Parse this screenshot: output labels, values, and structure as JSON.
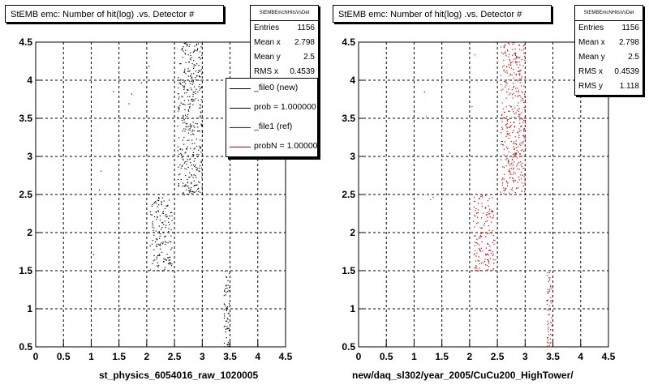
{
  "chart_data": [
    {
      "type": "scatter",
      "title": "StEMB emc: Number of hit(log) .vs. Detector #",
      "xlabel": "st_physics_6054016_raw_1020005",
      "ylabel": "",
      "xlim": [
        0,
        4.5
      ],
      "ylim": [
        0.5,
        4.5
      ],
      "xticks": [
        "0",
        "0.5",
        "1",
        "1.5",
        "2",
        "2.5",
        "3",
        "3.5",
        "4",
        "4.5"
      ],
      "yticks": [
        "0.5",
        "1",
        "1.5",
        "2",
        "2.5",
        "3",
        "3.5",
        "4",
        "4.5"
      ],
      "grid": true,
      "series_color": "#000000",
      "clusters": [
        {
          "x": [
            2.05,
            2.45
          ],
          "y": [
            1.5,
            2.5
          ],
          "density": 0.65
        },
        {
          "x": [
            2.55,
            3.0
          ],
          "y": [
            2.5,
            4.5
          ],
          "density": 0.75
        },
        {
          "x": [
            3.38,
            3.48
          ],
          "y": [
            0.5,
            1.5
          ],
          "density": 1.0
        }
      ],
      "stats": {
        "name": "StEMBEmcNHitsVsDet",
        "rows": [
          {
            "label": "Entries",
            "value": "1156"
          },
          {
            "label": "Mean x",
            "value": "2.798"
          },
          {
            "label": "Mean y",
            "value": "2.5"
          },
          {
            "label": "RMS x",
            "value": "0.4539"
          }
        ]
      },
      "legend": [
        {
          "label": "_file0 (new)",
          "color": "#000000"
        },
        {
          "label": "prob = 1.000000",
          "color": "#000000"
        },
        {
          "label": "_file1 (ref)",
          "color": "#cc0000"
        },
        {
          "label": "probN = 1.000000",
          "color": "#cc0000"
        }
      ]
    },
    {
      "type": "scatter",
      "title": "StEMB emc: Number of hit(log) .vs. Detector #",
      "xlabel": "new/daq_sl302/year_2005/CuCu200_HighTower/",
      "ylabel": "",
      "xlim": [
        0,
        4.5
      ],
      "ylim": [
        0.5,
        4.5
      ],
      "xticks": [
        "0",
        "0.5",
        "1",
        "1.5",
        "2",
        "2.5",
        "3",
        "3.5",
        "4",
        "4.5"
      ],
      "yticks": [
        "0.5",
        "1",
        "1.5",
        "2",
        "2.5",
        "3",
        "3.5",
        "4",
        "4.5"
      ],
      "grid": true,
      "series_color": "#cc0000",
      "clusters": [
        {
          "x": [
            2.05,
            2.45
          ],
          "y": [
            1.5,
            2.5
          ],
          "density": 0.65
        },
        {
          "x": [
            2.55,
            3.0
          ],
          "y": [
            2.5,
            4.5
          ],
          "density": 0.75
        },
        {
          "x": [
            3.38,
            3.48
          ],
          "y": [
            0.5,
            1.5
          ],
          "density": 1.0
        }
      ],
      "stats": {
        "name": "StEMBEmcNHitsVsDet",
        "rows": [
          {
            "label": "Entries",
            "value": "1156"
          },
          {
            "label": "Mean x",
            "value": "2.798"
          },
          {
            "label": "Mean y",
            "value": "2.5"
          },
          {
            "label": "RMS x",
            "value": "0.4539"
          },
          {
            "label": "RMS y",
            "value": "1.118"
          }
        ]
      }
    }
  ]
}
